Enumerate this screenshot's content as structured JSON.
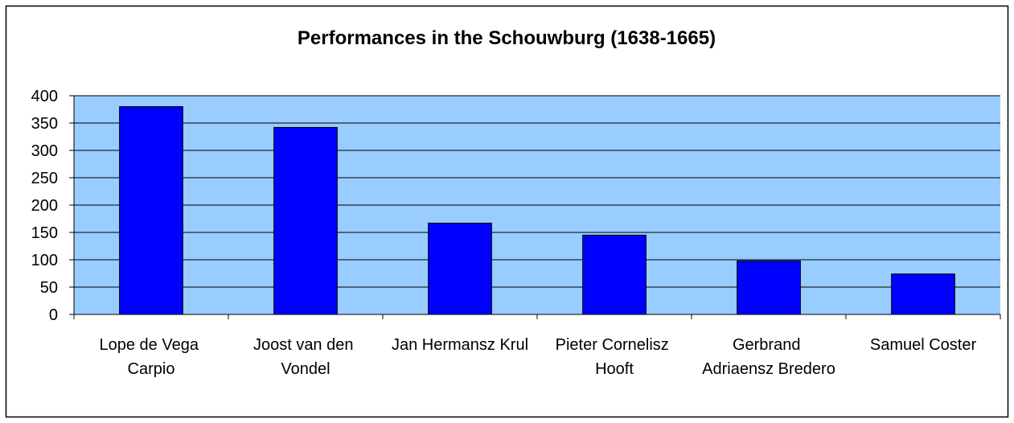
{
  "chart_data": {
    "type": "bar",
    "title": "Performances in the Schouwburg (1638-1665)",
    "categories": [
      "Lope de Vega Carpio",
      "Joost van den Vondel",
      "Jan Hermansz Krul",
      "Pieter Cornelisz Hooft",
      "Gerbrand Adriaensz Bredero",
      "Samuel Coster"
    ],
    "values": [
      380,
      342,
      167,
      145,
      98,
      74
    ],
    "color": "#0000ff",
    "ylim": [
      0,
      400
    ],
    "yticks": [
      0,
      50,
      100,
      150,
      200,
      250,
      300,
      350,
      400
    ],
    "grid": true
  }
}
